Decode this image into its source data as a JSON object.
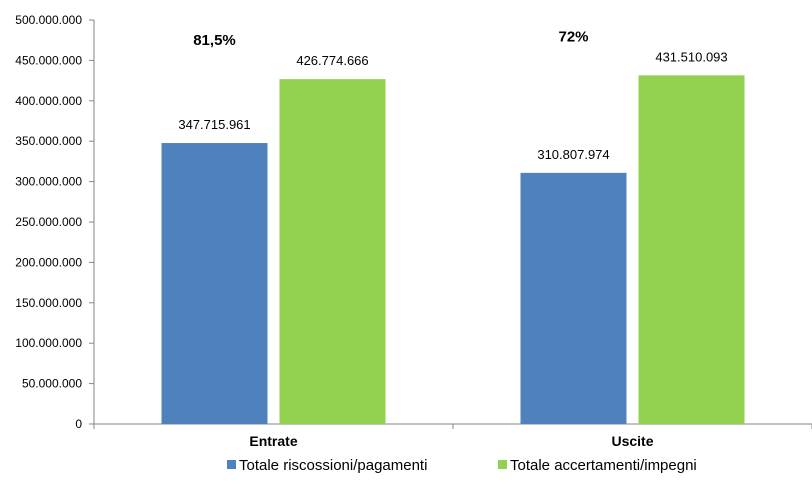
{
  "chart_data": {
    "type": "bar",
    "categories": [
      "Entrate",
      "Uscite"
    ],
    "series": [
      {
        "name": "Totale riscossioni/pagamenti",
        "color": "#4F81BD",
        "values": [
          347715961,
          310807974
        ],
        "labels": [
          "347.715.961",
          "310.807.974"
        ]
      },
      {
        "name": "Totale accertamenti/impegni",
        "color": "#92D050",
        "values": [
          426774666,
          431510093
        ],
        "labels": [
          "426.774.666",
          "431.510.093"
        ]
      }
    ],
    "percentages": [
      "81,5%",
      "72%"
    ],
    "ylim": [
      0,
      500000000
    ],
    "yticks": [
      0,
      50000000,
      100000000,
      150000000,
      200000000,
      250000000,
      300000000,
      350000000,
      400000000,
      450000000,
      500000000
    ],
    "ytick_labels": [
      "0",
      "50.000.000",
      "100.000.000",
      "150.000.000",
      "200.000.000",
      "250.000.000",
      "300.000.000",
      "350.000.000",
      "400.000.000",
      "450.000.000",
      "500.000.000"
    ],
    "grid": false,
    "legend_position": "bottom"
  }
}
